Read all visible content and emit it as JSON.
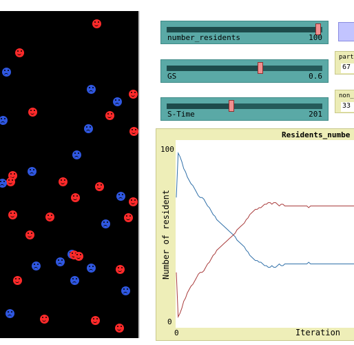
{
  "sliders": [
    {
      "id": "number_residents",
      "label": "number_residents",
      "value": "100",
      "fraction": 0.98
    },
    {
      "id": "gs",
      "label": "GS",
      "value": "0.6",
      "fraction": 0.6
    },
    {
      "id": "s_time",
      "label": "S-Time",
      "value": "201",
      "fraction": 0.41
    }
  ],
  "monitors": [
    {
      "label": "part",
      "value": "67"
    },
    {
      "label": "non_",
      "value": "33"
    }
  ],
  "chart_data": {
    "type": "line",
    "title": "Residents_numbe",
    "xlabel": "Iteration",
    "ylabel": "Number of resident",
    "ylim": [
      0,
      100
    ],
    "x_tick_labels": [
      "0"
    ],
    "y_tick_labels": [
      "0",
      "100"
    ],
    "series": [
      {
        "color": "#2f6fa8",
        "x": [
          0,
          1,
          2,
          3,
          4,
          5,
          6,
          7,
          8,
          9,
          10,
          11,
          12,
          13,
          14,
          15,
          16,
          17,
          18,
          19,
          20,
          21,
          22,
          23,
          24,
          25,
          26,
          27,
          28,
          29,
          30,
          31,
          32,
          33,
          34,
          35,
          36,
          37,
          38,
          39,
          40,
          41,
          42,
          43,
          44,
          45,
          46,
          47,
          48,
          49,
          50,
          51,
          52,
          53,
          54,
          55,
          56,
          57,
          58,
          59,
          60,
          61,
          62,
          63,
          64,
          65,
          66,
          67,
          68,
          69,
          70,
          71,
          72,
          73,
          74,
          75,
          76,
          77,
          78,
          79,
          80,
          81,
          82,
          83,
          84,
          85,
          86,
          87,
          88,
          89,
          90,
          91,
          92,
          93,
          94,
          95,
          96,
          97,
          98,
          99,
          100
        ],
        "values": [
          72,
          98,
          96,
          93,
          89,
          87,
          84,
          82,
          80,
          79,
          77,
          75,
          73,
          72,
          72,
          71,
          69,
          67,
          66,
          64,
          62,
          61,
          59,
          58,
          57,
          56,
          55,
          54,
          53,
          52,
          51,
          50,
          49,
          47,
          46,
          45,
          44,
          43,
          41,
          40,
          38,
          37,
          36,
          35,
          35,
          34,
          34,
          33,
          32,
          32,
          31,
          31,
          32,
          31,
          31,
          32,
          33,
          32,
          32,
          33,
          33,
          33,
          33,
          33,
          33,
          33,
          33,
          33,
          33,
          33,
          33,
          33,
          34,
          33,
          33,
          33,
          33,
          33,
          33,
          33,
          33,
          33,
          33,
          33,
          33,
          33,
          33,
          33,
          33,
          33,
          33,
          33,
          33,
          33,
          33,
          33,
          33,
          33,
          33,
          33,
          33
        ]
      },
      {
        "color": "#a83a3a",
        "x": [
          0,
          1,
          2,
          3,
          4,
          5,
          6,
          7,
          8,
          9,
          10,
          11,
          12,
          13,
          14,
          15,
          16,
          17,
          18,
          19,
          20,
          21,
          22,
          23,
          24,
          25,
          26,
          27,
          28,
          29,
          30,
          31,
          32,
          33,
          34,
          35,
          36,
          37,
          38,
          39,
          40,
          41,
          42,
          43,
          44,
          45,
          46,
          47,
          48,
          49,
          50,
          51,
          52,
          53,
          54,
          55,
          56,
          57,
          58,
          59,
          60,
          61,
          62,
          63,
          64,
          65,
          66,
          67,
          68,
          69,
          70,
          71,
          72,
          73,
          74,
          75,
          76,
          77,
          78,
          79,
          80,
          81,
          82,
          83,
          84,
          85,
          86,
          87,
          88,
          89,
          90,
          91,
          92,
          93,
          94,
          95,
          96,
          97,
          98,
          99,
          100
        ],
        "values": [
          28,
          2,
          4,
          7,
          11,
          13,
          16,
          18,
          20,
          21,
          23,
          25,
          27,
          28,
          28,
          29,
          31,
          33,
          34,
          36,
          38,
          39,
          41,
          42,
          43,
          44,
          45,
          46,
          47,
          48,
          49,
          50,
          51,
          53,
          54,
          55,
          56,
          57,
          59,
          60,
          62,
          63,
          64,
          65,
          65,
          66,
          66,
          67,
          68,
          68,
          69,
          69,
          68,
          69,
          69,
          68,
          67,
          68,
          68,
          67,
          67,
          67,
          67,
          67,
          67,
          67,
          67,
          67,
          67,
          67,
          67,
          67,
          66,
          67,
          67,
          67,
          67,
          67,
          67,
          67,
          67,
          67,
          67,
          67,
          67,
          67,
          67,
          67,
          67,
          67,
          67,
          67,
          67,
          67,
          67,
          67,
          67,
          67,
          67,
          67,
          67
        ]
      }
    ]
  }
}
